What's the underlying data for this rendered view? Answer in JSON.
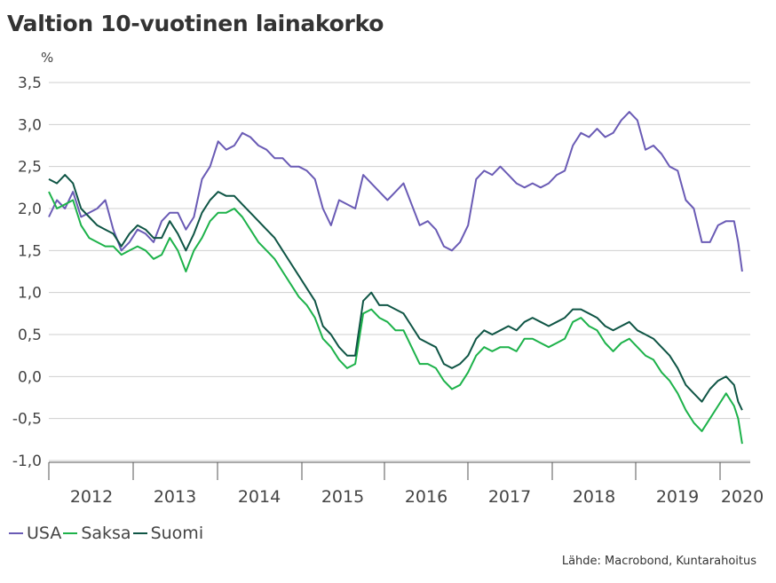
{
  "title": "Valtion 10-vuotinen lainakorko",
  "unit": "%",
  "source": "Lähde: Macrobond, Kuntarahoitus",
  "colors": {
    "USA": "#6a5bb5",
    "Saksa": "#1db24a",
    "Suomi": "#0f5545",
    "grid": "#cfcfcf",
    "axis": "#555555"
  },
  "chart_data": {
    "type": "line",
    "title": "Valtion 10-vuotinen lainakorko",
    "ylabel": "%",
    "xlabel": "",
    "ylim": [
      -1.0,
      3.5
    ],
    "xlim": [
      2011.6,
      2020.3
    ],
    "yticks": [
      3.5,
      3.0,
      2.5,
      2.0,
      1.5,
      1.0,
      0.5,
      0.0,
      -0.5,
      -1.0
    ],
    "ytick_labels": [
      "3,5",
      "3,0",
      "2,5",
      "2,0",
      "1,5",
      "1,0",
      "0,5",
      "0,0",
      "-0,5",
      "-1,0"
    ],
    "xtick_labels": [
      "2012",
      "2013",
      "2014",
      "2015",
      "2016",
      "2017",
      "2018",
      "2019",
      "2020"
    ],
    "grid": true,
    "legend": "bottom-left",
    "series": [
      {
        "name": "USA",
        "color": "#6a5bb5",
        "x": [
          2011.6,
          2011.7,
          2011.8,
          2011.9,
          2012.0,
          2012.1,
          2012.2,
          2012.3,
          2012.4,
          2012.5,
          2012.6,
          2012.7,
          2012.8,
          2012.9,
          2013.0,
          2013.1,
          2013.2,
          2013.3,
          2013.4,
          2013.5,
          2013.6,
          2013.7,
          2013.8,
          2013.9,
          2014.0,
          2014.1,
          2014.2,
          2014.3,
          2014.4,
          2014.5,
          2014.6,
          2014.7,
          2014.8,
          2014.9,
          2015.0,
          2015.1,
          2015.2,
          2015.3,
          2015.4,
          2015.5,
          2015.6,
          2015.7,
          2015.8,
          2015.9,
          2016.0,
          2016.1,
          2016.2,
          2016.3,
          2016.4,
          2016.5,
          2016.6,
          2016.7,
          2016.8,
          2016.9,
          2017.0,
          2017.1,
          2017.2,
          2017.3,
          2017.4,
          2017.5,
          2017.6,
          2017.7,
          2017.8,
          2017.9,
          2018.0,
          2018.1,
          2018.2,
          2018.3,
          2018.4,
          2018.5,
          2018.6,
          2018.7,
          2018.8,
          2018.9,
          2019.0,
          2019.1,
          2019.2,
          2019.3,
          2019.4,
          2019.5,
          2019.6,
          2019.7,
          2019.8,
          2019.9,
          2020.0,
          2020.1,
          2020.15,
          2020.2
        ],
        "y": [
          1.9,
          2.1,
          2.0,
          2.2,
          1.9,
          1.95,
          2.0,
          2.1,
          1.75,
          1.5,
          1.6,
          1.75,
          1.7,
          1.6,
          1.85,
          1.95,
          1.95,
          1.75,
          1.9,
          2.35,
          2.5,
          2.8,
          2.7,
          2.75,
          2.9,
          2.85,
          2.75,
          2.7,
          2.6,
          2.6,
          2.5,
          2.5,
          2.45,
          2.35,
          2.0,
          1.8,
          2.1,
          2.05,
          2.0,
          2.4,
          2.3,
          2.2,
          2.1,
          2.2,
          2.3,
          2.05,
          1.8,
          1.85,
          1.75,
          1.55,
          1.5,
          1.6,
          1.8,
          2.35,
          2.45,
          2.4,
          2.5,
          2.4,
          2.3,
          2.25,
          2.3,
          2.25,
          2.3,
          2.4,
          2.45,
          2.75,
          2.9,
          2.85,
          2.95,
          2.85,
          2.9,
          3.05,
          3.15,
          3.05,
          2.7,
          2.75,
          2.65,
          2.5,
          2.45,
          2.1,
          2.0,
          1.6,
          1.6,
          1.8,
          1.85,
          1.85,
          1.6,
          1.25
        ]
      },
      {
        "name": "Saksa",
        "color": "#1db24a",
        "x": [
          2011.6,
          2011.7,
          2011.8,
          2011.9,
          2012.0,
          2012.1,
          2012.2,
          2012.3,
          2012.4,
          2012.5,
          2012.6,
          2012.7,
          2012.8,
          2012.9,
          2013.0,
          2013.1,
          2013.2,
          2013.3,
          2013.4,
          2013.5,
          2013.6,
          2013.7,
          2013.8,
          2013.9,
          2014.0,
          2014.1,
          2014.2,
          2014.3,
          2014.4,
          2014.5,
          2014.6,
          2014.7,
          2014.8,
          2014.9,
          2015.0,
          2015.1,
          2015.2,
          2015.3,
          2015.4,
          2015.5,
          2015.6,
          2015.7,
          2015.8,
          2015.9,
          2016.0,
          2016.1,
          2016.2,
          2016.3,
          2016.4,
          2016.5,
          2016.6,
          2016.7,
          2016.8,
          2016.9,
          2017.0,
          2017.1,
          2017.2,
          2017.3,
          2017.4,
          2017.5,
          2017.6,
          2017.7,
          2017.8,
          2017.9,
          2018.0,
          2018.1,
          2018.2,
          2018.3,
          2018.4,
          2018.5,
          2018.6,
          2018.7,
          2018.8,
          2018.9,
          2019.0,
          2019.1,
          2019.2,
          2019.3,
          2019.4,
          2019.5,
          2019.6,
          2019.7,
          2019.8,
          2019.9,
          2020.0,
          2020.1,
          2020.15,
          2020.2
        ],
        "y": [
          2.2,
          2.0,
          2.05,
          2.1,
          1.8,
          1.65,
          1.6,
          1.55,
          1.55,
          1.45,
          1.5,
          1.55,
          1.5,
          1.4,
          1.45,
          1.65,
          1.5,
          1.25,
          1.5,
          1.65,
          1.85,
          1.95,
          1.95,
          2.0,
          1.9,
          1.75,
          1.6,
          1.5,
          1.4,
          1.25,
          1.1,
          0.95,
          0.85,
          0.7,
          0.45,
          0.35,
          0.2,
          0.1,
          0.15,
          0.75,
          0.8,
          0.7,
          0.65,
          0.55,
          0.55,
          0.35,
          0.15,
          0.15,
          0.1,
          -0.05,
          -0.15,
          -0.1,
          0.05,
          0.25,
          0.35,
          0.3,
          0.35,
          0.35,
          0.3,
          0.45,
          0.45,
          0.4,
          0.35,
          0.4,
          0.45,
          0.65,
          0.7,
          0.6,
          0.55,
          0.4,
          0.3,
          0.4,
          0.45,
          0.35,
          0.25,
          0.2,
          0.05,
          -0.05,
          -0.2,
          -0.4,
          -0.55,
          -0.65,
          -0.5,
          -0.35,
          -0.2,
          -0.35,
          -0.5,
          -0.8
        ]
      },
      {
        "name": "Suomi",
        "color": "#0f5545",
        "x": [
          2011.6,
          2011.7,
          2011.8,
          2011.9,
          2012.0,
          2012.1,
          2012.2,
          2012.3,
          2012.4,
          2012.5,
          2012.6,
          2012.7,
          2012.8,
          2012.9,
          2013.0,
          2013.1,
          2013.2,
          2013.3,
          2013.4,
          2013.5,
          2013.6,
          2013.7,
          2013.8,
          2013.9,
          2014.0,
          2014.1,
          2014.2,
          2014.3,
          2014.4,
          2014.5,
          2014.6,
          2014.7,
          2014.8,
          2014.9,
          2015.0,
          2015.1,
          2015.2,
          2015.3,
          2015.4,
          2015.5,
          2015.6,
          2015.7,
          2015.8,
          2015.9,
          2016.0,
          2016.1,
          2016.2,
          2016.3,
          2016.4,
          2016.5,
          2016.6,
          2016.7,
          2016.8,
          2016.9,
          2017.0,
          2017.1,
          2017.2,
          2017.3,
          2017.4,
          2017.5,
          2017.6,
          2017.7,
          2017.8,
          2017.9,
          2018.0,
          2018.1,
          2018.2,
          2018.3,
          2018.4,
          2018.5,
          2018.6,
          2018.7,
          2018.8,
          2018.9,
          2019.0,
          2019.1,
          2019.2,
          2019.3,
          2019.4,
          2019.5,
          2019.6,
          2019.7,
          2019.8,
          2019.9,
          2020.0,
          2020.1,
          2020.15,
          2020.2
        ],
        "y": [
          2.35,
          2.3,
          2.4,
          2.3,
          2.0,
          1.9,
          1.8,
          1.75,
          1.7,
          1.55,
          1.7,
          1.8,
          1.75,
          1.65,
          1.65,
          1.85,
          1.7,
          1.5,
          1.7,
          1.95,
          2.1,
          2.2,
          2.15,
          2.15,
          2.05,
          1.95,
          1.85,
          1.75,
          1.65,
          1.5,
          1.35,
          1.2,
          1.05,
          0.9,
          0.6,
          0.5,
          0.35,
          0.25,
          0.25,
          0.9,
          1.0,
          0.85,
          0.85,
          0.8,
          0.75,
          0.6,
          0.45,
          0.4,
          0.35,
          0.15,
          0.1,
          0.15,
          0.25,
          0.45,
          0.55,
          0.5,
          0.55,
          0.6,
          0.55,
          0.65,
          0.7,
          0.65,
          0.6,
          0.65,
          0.7,
          0.8,
          0.8,
          0.75,
          0.7,
          0.6,
          0.55,
          0.6,
          0.65,
          0.55,
          0.5,
          0.45,
          0.35,
          0.25,
          0.1,
          -0.1,
          -0.2,
          -0.3,
          -0.15,
          -0.05,
          0.0,
          -0.1,
          -0.3,
          -0.4
        ]
      }
    ]
  }
}
